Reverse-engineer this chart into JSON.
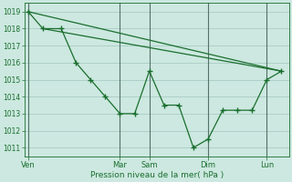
{
  "xlabel": "Pression niveau de la mer( hPa )",
  "bg_color": "#cce8e0",
  "grid_color": "#aaccc4",
  "line_color": "#1a6e2e",
  "ylim": [
    1010.5,
    1019.5
  ],
  "yticks": [
    1011,
    1012,
    1013,
    1014,
    1015,
    1016,
    1017,
    1018,
    1019
  ],
  "xlim": [
    0,
    36
  ],
  "day_labels": [
    "Ven",
    "Mar",
    "Sam",
    "Dim",
    "Lun"
  ],
  "day_positions": [
    0.5,
    13,
    17,
    25,
    33
  ],
  "straight_line1": {
    "x": [
      0.5,
      35
    ],
    "y": [
      1019.0,
      1015.5
    ]
  },
  "straight_line2": {
    "x": [
      2.5,
      35
    ],
    "y": [
      1018.0,
      1015.5
    ]
  },
  "detail_line": {
    "x": [
      0.5,
      2.5,
      5,
      7,
      9,
      11,
      13,
      15,
      17,
      19,
      21,
      23,
      25,
      27,
      29,
      31,
      33,
      35
    ],
    "y": [
      1019,
      1018,
      1018,
      1016,
      1015,
      1014,
      1013,
      1013,
      1015.5,
      1013.5,
      1013.5,
      1011,
      1011.5,
      1013.2,
      1013.2,
      1013.2,
      1015,
      1015.5
    ]
  }
}
